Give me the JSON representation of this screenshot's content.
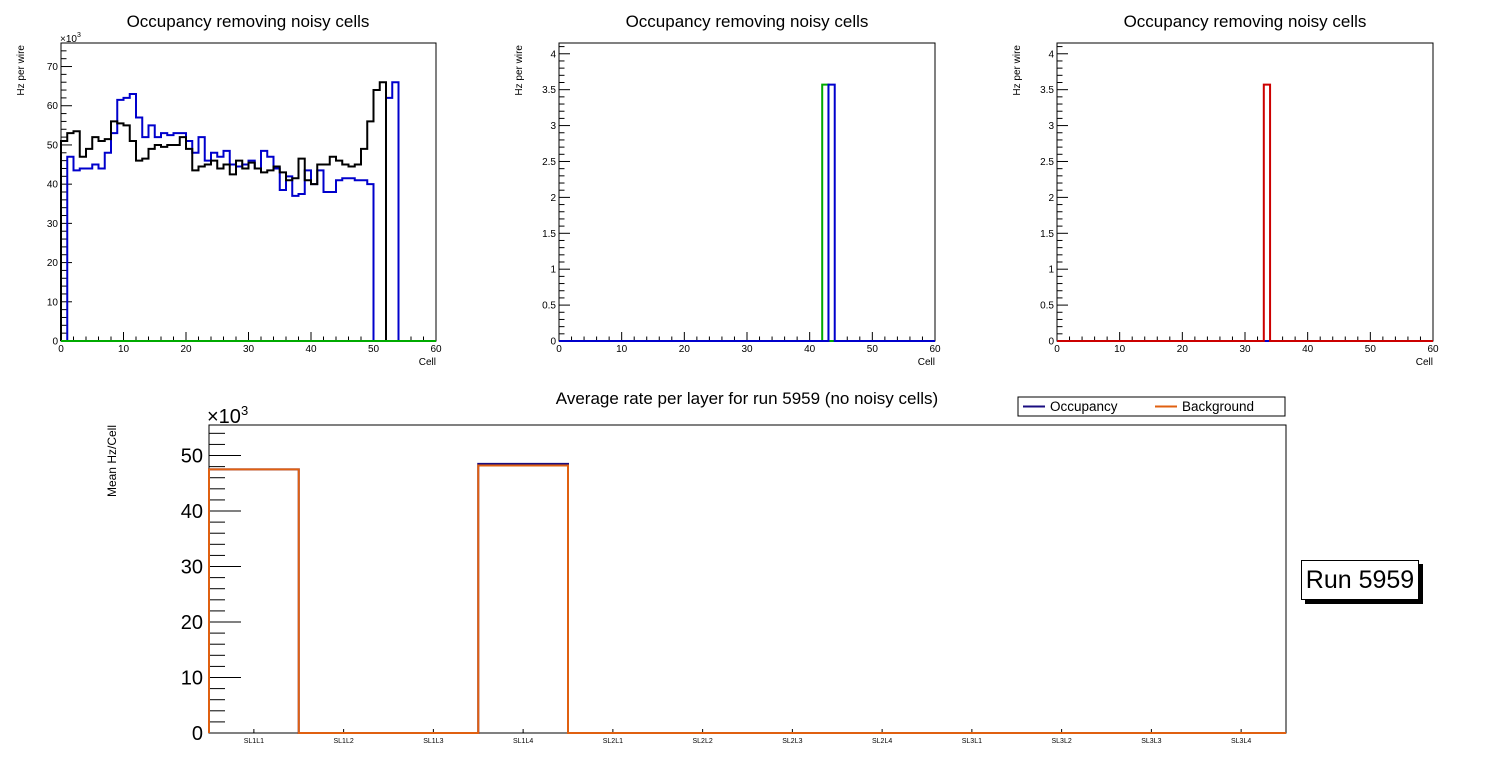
{
  "chart_data": [
    {
      "type": "line",
      "title": "Occupancy removing noisy cells",
      "xlabel": "Cell",
      "ylabel": "Hz per wire",
      "exponent_label": "×10",
      "exponent_power": "3",
      "xlim": [
        0,
        60
      ],
      "ylim": [
        0,
        76
      ],
      "xticks": [
        "0",
        "10",
        "20",
        "30",
        "40",
        "50",
        "60"
      ],
      "yticks": [
        "0",
        "10",
        "20",
        "30",
        "40",
        "50",
        "60",
        "70"
      ],
      "series": [
        {
          "name": "blue",
          "color": "#0000cc",
          "values": [
            0,
            47,
            43.5,
            44,
            44,
            45,
            44,
            48,
            53,
            61.5,
            62,
            63,
            57,
            52,
            55,
            52,
            53,
            52.5,
            53,
            53,
            51,
            48,
            52,
            46,
            48,
            47,
            48.5,
            45,
            44.5,
            45,
            46,
            44,
            48.5,
            47,
            44,
            38.5,
            42,
            37,
            37.5,
            43.5,
            40,
            43.5,
            38,
            38,
            41,
            41.5,
            41.5,
            41,
            41,
            40,
            0,
            0,
            62,
            66,
            0,
            0,
            0,
            0,
            0,
            0
          ]
        },
        {
          "name": "black",
          "color": "#000000",
          "values": [
            51,
            53,
            53.5,
            47,
            49,
            52,
            51,
            51.5,
            56,
            55.5,
            55,
            51,
            46,
            46.5,
            49,
            50,
            49.5,
            50,
            50,
            52,
            49,
            43.5,
            44.5,
            45,
            46,
            44,
            45,
            42.5,
            46,
            44,
            45.5,
            44,
            43,
            43.5,
            44.5,
            43,
            41,
            41.5,
            46.5,
            41,
            40,
            45,
            45,
            47,
            46,
            45,
            44.5,
            45,
            49,
            56,
            64,
            66,
            0,
            0,
            0,
            0,
            0,
            0,
            0,
            0
          ]
        },
        {
          "name": "green",
          "color": "#00aa00",
          "values": [
            0,
            0,
            0,
            0,
            0,
            0,
            0,
            0,
            0,
            0,
            0,
            0,
            0,
            0,
            0,
            0,
            0,
            0,
            0,
            0,
            0,
            0,
            0,
            0,
            0,
            0,
            0,
            0,
            0,
            0,
            0,
            0,
            0,
            0,
            0,
            0,
            0,
            0,
            0,
            0,
            0,
            0,
            0,
            0,
            0,
            0,
            0,
            0,
            0,
            0,
            0,
            0,
            0,
            0,
            0,
            0,
            0,
            0,
            0,
            0
          ]
        }
      ]
    },
    {
      "type": "line",
      "title": "Occupancy removing noisy cells",
      "xlabel": "Cell",
      "ylabel": "Hz per wire",
      "xlim": [
        0,
        60
      ],
      "ylim": [
        0,
        4.15
      ],
      "xticks": [
        "0",
        "10",
        "20",
        "30",
        "40",
        "50",
        "60"
      ],
      "yticks": [
        "0",
        "0.5",
        "1",
        "1.5",
        "2",
        "2.5",
        "3",
        "3.5",
        "4"
      ],
      "series": [
        {
          "name": "green",
          "color": "#00aa00",
          "bins": [
            {
              "x": 42,
              "y": 3.57
            }
          ]
        },
        {
          "name": "blue",
          "color": "#0000cc",
          "bins": [
            {
              "x": 43,
              "y": 3.57
            }
          ]
        }
      ]
    },
    {
      "type": "line",
      "title": "Occupancy removing noisy cells",
      "xlabel": "Cell",
      "ylabel": "Hz per wire",
      "xlim": [
        0,
        60
      ],
      "ylim": [
        0,
        4.15
      ],
      "xticks": [
        "0",
        "10",
        "20",
        "30",
        "40",
        "50",
        "60"
      ],
      "yticks": [
        "0",
        "0.5",
        "1",
        "1.5",
        "2",
        "2.5",
        "3",
        "3.5",
        "4"
      ],
      "series": [
        {
          "name": "blue",
          "color": "#0000cc",
          "bins": []
        },
        {
          "name": "red",
          "color": "#cc0000",
          "bins": [
            {
              "x": 33,
              "y": 3.57
            }
          ]
        }
      ]
    },
    {
      "type": "bar",
      "title": "Average rate per layer for run 5959 (no noisy cells)",
      "ylabel": "Mean Hz/Cell",
      "exponent_label": "×10",
      "exponent_power": "3",
      "ylim": [
        0,
        55.5
      ],
      "yticks": [
        "0",
        "10",
        "20",
        "30",
        "40",
        "50"
      ],
      "categories": [
        "SL1L1",
        "SL1L2",
        "SL1L3",
        "SL1L4",
        "SL2L1",
        "SL2L2",
        "SL2L3",
        "SL2L4",
        "SL3L1",
        "SL3L2",
        "SL3L3",
        "SL3L4"
      ],
      "series": [
        {
          "name": "Occupancy",
          "color": "#1a0d80",
          "values": [
            47.5,
            0,
            0,
            48.5,
            0,
            0,
            0,
            0,
            0,
            0,
            0,
            0
          ]
        },
        {
          "name": "Background",
          "color": "#e06010",
          "values": [
            47.5,
            0,
            0,
            48.2,
            0,
            0,
            0,
            0,
            0,
            0,
            0,
            0
          ]
        }
      ],
      "legend": [
        "Occupancy",
        "Background"
      ],
      "legend_position": "top-right"
    }
  ],
  "run_label": "Run 5959"
}
